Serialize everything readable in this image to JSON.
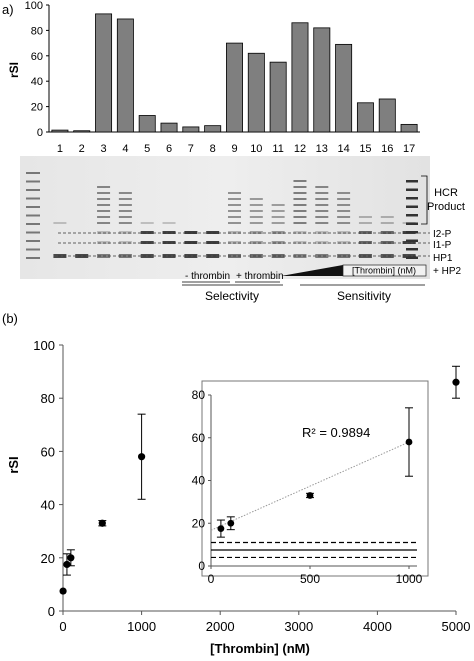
{
  "panel_a": {
    "label": "a)",
    "lane_labels": [
      "1",
      "2",
      "3",
      "4",
      "5",
      "6",
      "7",
      "8",
      "9",
      "10",
      "11",
      "12",
      "13",
      "14",
      "15",
      "16",
      "17"
    ],
    "right_labels": {
      "hcr_line1": "HCR",
      "hcr_line2": "Product",
      "i2p": "I2-P",
      "i1p": "I1-P",
      "hp1": "HP1",
      "hp2": "+ HP2"
    },
    "bottom_labels": {
      "minus_thrombin": "- thrombin",
      "plus_thrombin": "+ thrombin",
      "thrombin_nm": "[Thrombin] (nM)",
      "selectivity": "Selectivity",
      "sensitivity": "Sensitivity"
    },
    "gel_lane_signal": [
      0.1,
      0.05,
      0.85,
      0.8,
      0.1,
      0.08,
      0.05,
      0.06,
      0.7,
      0.6,
      0.55,
      0.95,
      0.85,
      0.75,
      0.3,
      0.3,
      0.1
    ]
  },
  "panel_b": {
    "label": "(b)"
  },
  "chart_data": [
    {
      "type": "bar",
      "ylabel": "rSI",
      "xlabel": "",
      "ylim": [
        0,
        100
      ],
      "yticks": [
        0,
        20,
        40,
        60,
        80,
        100
      ],
      "categories": [
        "1",
        "2",
        "3",
        "4",
        "5",
        "6",
        "7",
        "8",
        "9",
        "10",
        "11",
        "12",
        "13",
        "14",
        "15",
        "16",
        "17"
      ],
      "values": [
        1.5,
        1,
        93,
        89,
        13,
        7,
        4,
        5,
        70,
        62,
        55,
        86,
        82,
        69,
        23,
        26,
        6
      ],
      "bar_color": "#7f7f7f"
    },
    {
      "type": "scatter",
      "xlabel": "[Thrombin] (nM)",
      "ylabel": "rSI",
      "xlim": [
        0,
        5000
      ],
      "ylim": [
        0,
        100
      ],
      "xticks": [
        0,
        1000,
        2000,
        3000,
        4000,
        5000
      ],
      "yticks": [
        0,
        20,
        40,
        60,
        80,
        100
      ],
      "points": [
        {
          "x": 1,
          "y": 7.5,
          "err": 0
        },
        {
          "x": 50,
          "y": 17.5,
          "err": 4
        },
        {
          "x": 100,
          "y": 20,
          "err": 3
        },
        {
          "x": 500,
          "y": 33,
          "err": 1
        },
        {
          "x": 1000,
          "y": 58,
          "err": 16
        },
        {
          "x": 5000,
          "y": 86,
          "err": 6
        }
      ]
    },
    {
      "type": "scatter",
      "xlabel": "",
      "ylabel": "",
      "xlim": [
        0,
        1000
      ],
      "ylim": [
        0,
        80
      ],
      "xticks": [
        0,
        500,
        1000
      ],
      "yticks": [
        0,
        20,
        40,
        60,
        80
      ],
      "annotation": "R² = 0.9894",
      "points": [
        {
          "x": 50,
          "y": 17.5,
          "err": 4
        },
        {
          "x": 100,
          "y": 20,
          "err": 3
        },
        {
          "x": 500,
          "y": 33,
          "err": 1
        },
        {
          "x": 1000,
          "y": 58,
          "err": 16
        }
      ],
      "trendline": {
        "x": [
          0,
          1000
        ],
        "y": [
          16.7,
          58
        ]
      },
      "horizontal_lines": [
        {
          "y": 11,
          "style": "dashed"
        },
        {
          "y": 7.5,
          "style": "solid"
        },
        {
          "y": 4,
          "style": "dashed"
        }
      ]
    }
  ]
}
